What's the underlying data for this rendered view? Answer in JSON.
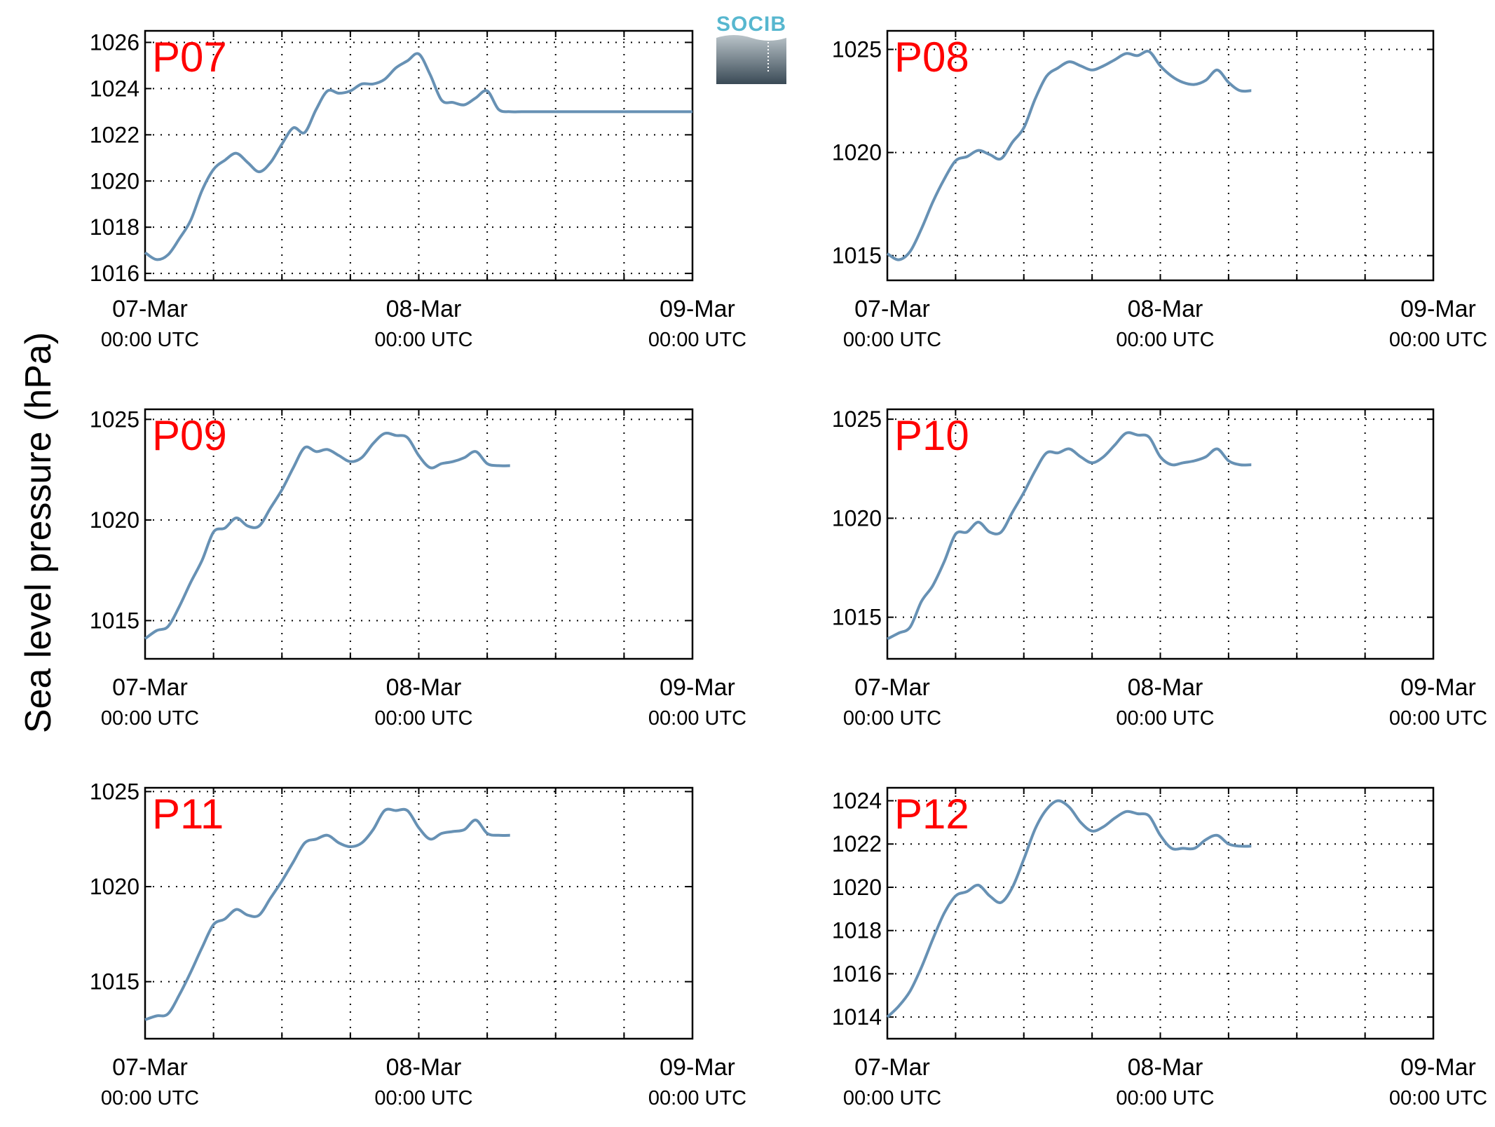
{
  "figure": {
    "ylabel": "Sea level pressure (hPa)",
    "logo_text": "SOCIB",
    "colors": {
      "line": "#6791b4",
      "title": "#ff0000",
      "logo_text": "#57b7cf",
      "logo_top": "#bac4c9",
      "logo_bottom": "#3a4a56"
    }
  },
  "chart_data": [
    {
      "type": "line",
      "title": "P07",
      "ylabel": "Sea level pressure (hPa)",
      "ylim": [
        1015.7,
        1026.5
      ],
      "yticks": [
        1016,
        1018,
        1020,
        1022,
        1024,
        1026
      ],
      "xlim": [
        0,
        48
      ],
      "grid": true,
      "xticks": [
        {
          "date": "07-Mar",
          "time": "00:00 UTC"
        },
        {
          "date": "08-Mar",
          "time": "00:00 UTC"
        },
        {
          "date": "09-Mar",
          "time": "00:00 UTC"
        }
      ],
      "x": [
        0,
        1,
        2,
        3,
        4,
        5,
        6,
        7,
        8,
        9,
        10,
        11,
        12,
        13,
        14,
        15,
        16,
        17,
        18,
        19,
        20,
        21,
        22,
        23,
        24,
        25,
        26,
        27,
        28,
        29,
        30,
        31,
        32,
        33,
        34,
        35,
        36,
        37,
        38,
        39,
        40,
        41,
        42,
        43,
        44,
        45,
        46,
        47,
        48
      ],
      "y": [
        1016.9,
        1016.6,
        1016.8,
        1017.5,
        1018.3,
        1019.6,
        1020.5,
        1020.9,
        1021.2,
        1020.8,
        1020.4,
        1020.8,
        1021.6,
        1022.3,
        1022.1,
        1023.1,
        1023.9,
        1023.8,
        1023.9,
        1024.2,
        1024.2,
        1024.4,
        1024.9,
        1025.2,
        1025.5,
        1024.6,
        1023.5,
        1023.4,
        1023.3,
        1023.6,
        1023.9,
        1023.1,
        1023.0,
        1023.0,
        1023.0,
        1023.0,
        1023.0,
        1023.0,
        1023.0,
        1023.0,
        1023.0,
        1023.0,
        1023.0,
        1023.0,
        1023.0,
        1023.0,
        1023.0,
        1023.0,
        1023.0
      ]
    },
    {
      "type": "line",
      "title": "P08",
      "ylabel": "Sea level pressure (hPa)",
      "ylim": [
        1013.8,
        1025.9
      ],
      "yticks": [
        1015,
        1020,
        1025
      ],
      "xlim": [
        0,
        48
      ],
      "grid": true,
      "xticks": [
        {
          "date": "07-Mar",
          "time": "00:00 UTC"
        },
        {
          "date": "08-Mar",
          "time": "00:00 UTC"
        },
        {
          "date": "09-Mar",
          "time": "00:00 UTC"
        }
      ],
      "x": [
        0,
        1,
        2,
        3,
        4,
        5,
        6,
        7,
        8,
        9,
        10,
        11,
        12,
        13,
        14,
        15,
        16,
        17,
        18,
        19,
        20,
        21,
        22,
        23,
        24,
        25,
        26,
        27,
        28,
        29,
        30,
        31,
        32
      ],
      "y": [
        1015.1,
        1014.8,
        1015.2,
        1016.3,
        1017.6,
        1018.7,
        1019.6,
        1019.8,
        1020.1,
        1019.9,
        1019.7,
        1020.5,
        1021.2,
        1022.6,
        1023.7,
        1024.1,
        1024.4,
        1024.2,
        1024.0,
        1024.2,
        1024.5,
        1024.8,
        1024.7,
        1024.9,
        1024.2,
        1023.7,
        1023.4,
        1023.3,
        1023.5,
        1024.0,
        1023.4,
        1023.0,
        1023.0
      ]
    },
    {
      "type": "line",
      "title": "P09",
      "ylabel": "Sea level pressure (hPa)",
      "ylim": [
        1013.1,
        1025.5
      ],
      "yticks": [
        1015,
        1020,
        1025
      ],
      "xlim": [
        0,
        48
      ],
      "grid": true,
      "xticks": [
        {
          "date": "07-Mar",
          "time": "00:00 UTC"
        },
        {
          "date": "08-Mar",
          "time": "00:00 UTC"
        },
        {
          "date": "09-Mar",
          "time": "00:00 UTC"
        }
      ],
      "x": [
        0,
        1,
        2,
        3,
        4,
        5,
        6,
        7,
        8,
        9,
        10,
        11,
        12,
        13,
        14,
        15,
        16,
        17,
        18,
        19,
        20,
        21,
        22,
        23,
        24,
        25,
        26,
        27,
        28,
        29,
        30,
        31,
        32
      ],
      "y": [
        1014.1,
        1014.5,
        1014.7,
        1015.7,
        1016.9,
        1018.0,
        1019.4,
        1019.6,
        1020.1,
        1019.7,
        1019.7,
        1020.6,
        1021.5,
        1022.6,
        1023.6,
        1023.4,
        1023.5,
        1023.2,
        1022.9,
        1023.1,
        1023.8,
        1024.3,
        1024.2,
        1024.1,
        1023.2,
        1022.6,
        1022.8,
        1022.9,
        1023.1,
        1023.4,
        1022.8,
        1022.7,
        1022.7
      ]
    },
    {
      "type": "line",
      "title": "P10",
      "ylabel": "Sea level pressure (hPa)",
      "ylim": [
        1012.9,
        1025.5
      ],
      "yticks": [
        1015,
        1020,
        1025
      ],
      "xlim": [
        0,
        48
      ],
      "grid": true,
      "xticks": [
        {
          "date": "07-Mar",
          "time": "00:00 UTC"
        },
        {
          "date": "08-Mar",
          "time": "00:00 UTC"
        },
        {
          "date": "09-Mar",
          "time": "00:00 UTC"
        }
      ],
      "x": [
        0,
        1,
        2,
        3,
        4,
        5,
        6,
        7,
        8,
        9,
        10,
        11,
        12,
        13,
        14,
        15,
        16,
        17,
        18,
        19,
        20,
        21,
        22,
        23,
        24,
        25,
        26,
        27,
        28,
        29,
        30,
        31,
        32
      ],
      "y": [
        1013.9,
        1014.2,
        1014.5,
        1015.8,
        1016.6,
        1017.8,
        1019.2,
        1019.3,
        1019.8,
        1019.3,
        1019.3,
        1020.3,
        1021.3,
        1022.4,
        1023.3,
        1023.3,
        1023.5,
        1023.1,
        1022.8,
        1023.1,
        1023.7,
        1024.3,
        1024.2,
        1024.1,
        1023.1,
        1022.7,
        1022.8,
        1022.9,
        1023.1,
        1023.5,
        1022.9,
        1022.7,
        1022.7
      ]
    },
    {
      "type": "line",
      "title": "P11",
      "ylabel": "Sea level pressure (hPa)",
      "ylim": [
        1012.0,
        1025.2
      ],
      "yticks": [
        1015,
        1020,
        1025
      ],
      "xlim": [
        0,
        48
      ],
      "grid": true,
      "xticks": [
        {
          "date": "07-Mar",
          "time": "00:00 UTC"
        },
        {
          "date": "08-Mar",
          "time": "00:00 UTC"
        },
        {
          "date": "09-Mar",
          "time": "00:00 UTC"
        }
      ],
      "x": [
        0,
        1,
        2,
        3,
        4,
        5,
        6,
        7,
        8,
        9,
        10,
        11,
        12,
        13,
        14,
        15,
        16,
        17,
        18,
        19,
        20,
        21,
        22,
        23,
        24,
        25,
        26,
        27,
        28,
        29,
        30,
        31,
        32
      ],
      "y": [
        1013.0,
        1013.2,
        1013.3,
        1014.3,
        1015.5,
        1016.8,
        1018.0,
        1018.3,
        1018.8,
        1018.5,
        1018.5,
        1019.4,
        1020.3,
        1021.3,
        1022.3,
        1022.5,
        1022.7,
        1022.3,
        1022.1,
        1022.3,
        1023.0,
        1024.0,
        1024.0,
        1024.0,
        1023.1,
        1022.5,
        1022.8,
        1022.9,
        1023.0,
        1023.5,
        1022.8,
        1022.7,
        1022.7
      ]
    },
    {
      "type": "line",
      "title": "P12",
      "ylabel": "Sea level pressure (hPa)",
      "ylim": [
        1013.0,
        1024.6
      ],
      "yticks": [
        1014,
        1016,
        1018,
        1020,
        1022,
        1024
      ],
      "xlim": [
        0,
        48
      ],
      "grid": true,
      "xticks": [
        {
          "date": "07-Mar",
          "time": "00:00 UTC"
        },
        {
          "date": "08-Mar",
          "time": "00:00 UTC"
        },
        {
          "date": "09-Mar",
          "time": "00:00 UTC"
        }
      ],
      "x": [
        0,
        1,
        2,
        3,
        4,
        5,
        6,
        7,
        8,
        9,
        10,
        11,
        12,
        13,
        14,
        15,
        16,
        17,
        18,
        19,
        20,
        21,
        22,
        23,
        24,
        25,
        26,
        27,
        28,
        29,
        30,
        31,
        32
      ],
      "y": [
        1014.0,
        1014.5,
        1015.2,
        1016.3,
        1017.6,
        1018.8,
        1019.6,
        1019.8,
        1020.1,
        1019.6,
        1019.3,
        1020.0,
        1021.3,
        1022.7,
        1023.6,
        1024.0,
        1023.7,
        1023.0,
        1022.6,
        1022.8,
        1023.2,
        1023.5,
        1023.4,
        1023.3,
        1022.4,
        1021.8,
        1021.8,
        1021.8,
        1022.2,
        1022.4,
        1022.0,
        1021.9,
        1021.9
      ]
    }
  ]
}
